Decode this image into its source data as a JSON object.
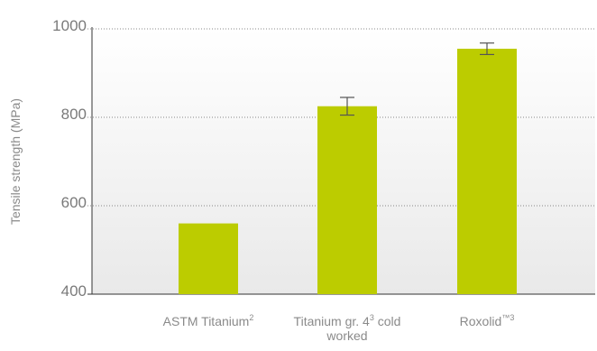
{
  "colors": {
    "bar": "#bccc00",
    "grid": "#888888",
    "axis": "#333333",
    "error_bar": "#555555",
    "plot_bg_top": "#ffffff",
    "plot_bg_bottom": "#e9e9e9"
  },
  "chart_data": {
    "type": "bar",
    "ylabel": "Tensile strength (MPa)",
    "ylim": [
      400,
      1000
    ],
    "yticks": [
      400,
      600,
      800,
      1000
    ],
    "grid": "horizontal dotted",
    "categories": [
      {
        "text": "ASTM Titanium",
        "sup": "2"
      },
      {
        "text": "Titanium gr. 4",
        "sup": "3",
        "text2": " cold",
        "line2": "worked"
      },
      {
        "text": "Roxolid",
        "sup": "™3"
      }
    ],
    "values": [
      560,
      825,
      955
    ],
    "errors": [
      null,
      20,
      13
    ]
  }
}
